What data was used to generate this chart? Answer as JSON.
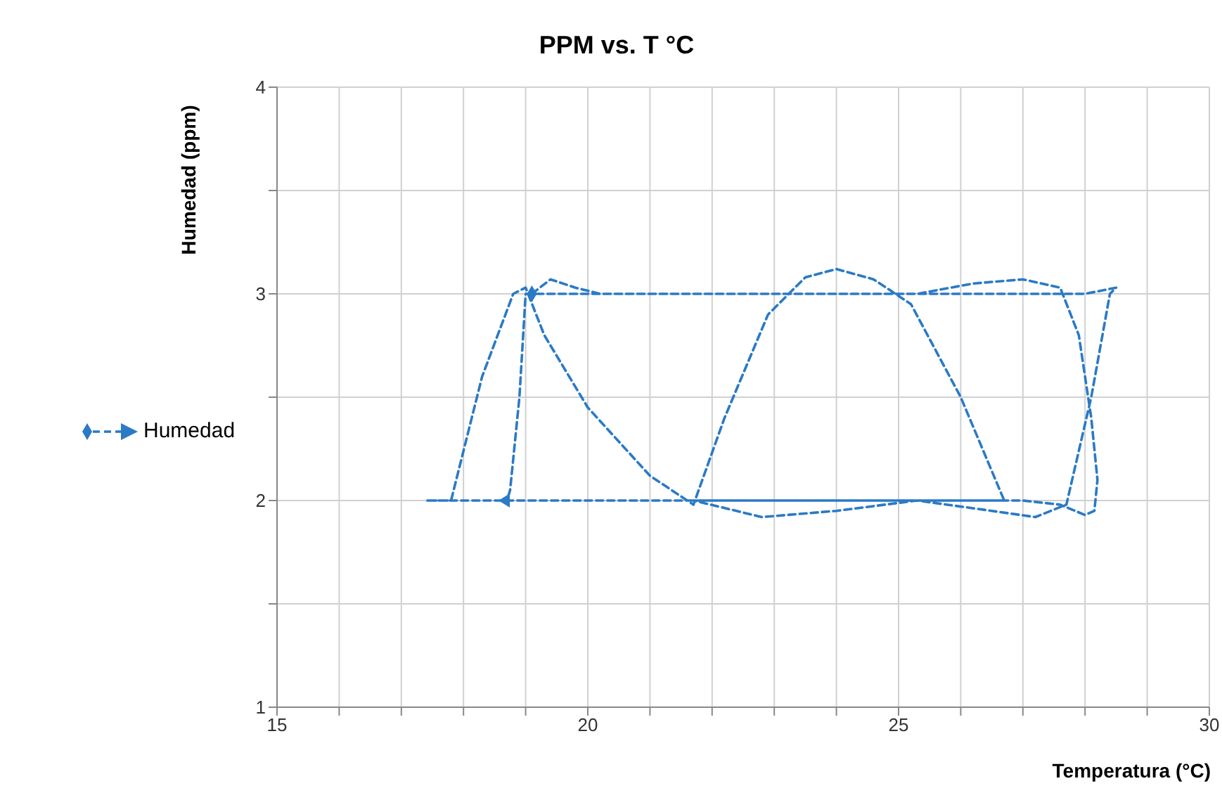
{
  "chart_data": {
    "type": "line",
    "title": "PPM vs. T °C",
    "xlabel": "Temperatura (°C)",
    "ylabel": "Humedad (ppm)",
    "x": [
      19.1,
      19.4,
      19.8,
      20.2,
      25.3,
      26.2,
      27.0,
      27.6,
      27.9,
      28.1,
      28.2,
      28.15,
      28.0,
      27.6,
      27.0,
      17.4,
      17.8,
      18.3,
      18.8,
      19.0,
      19.3,
      20.0,
      21.0,
      21.7,
      22.2,
      22.9,
      23.5,
      24.0,
      24.6,
      25.2,
      26.0,
      26.7,
      21.7,
      22.8,
      24.0,
      25.3,
      26.5,
      27.2,
      27.7,
      28.1,
      28.4,
      28.5,
      28.0,
      20.5,
      19.0,
      18.9,
      18.75,
      18.7
    ],
    "series": [
      {
        "name": "Humedad",
        "color": "#2a7ac6",
        "values": [
          3.0,
          3.07,
          3.03,
          3.0,
          3.0,
          3.05,
          3.07,
          3.03,
          2.8,
          2.4,
          2.1,
          1.95,
          1.93,
          1.98,
          2.0,
          2.0,
          2.0,
          2.6,
          3.0,
          3.03,
          2.8,
          2.45,
          2.12,
          1.98,
          2.4,
          2.9,
          3.08,
          3.12,
          3.07,
          2.95,
          2.5,
          2.0,
          2.0,
          1.92,
          1.95,
          2.0,
          1.95,
          1.92,
          1.98,
          2.5,
          3.0,
          3.03,
          3.0,
          3.0,
          3.0,
          2.5,
          2.05,
          2.0
        ]
      }
    ],
    "xlim": [
      15,
      30
    ],
    "xticks": [
      15,
      {
        "value": 16,
        "label": null
      },
      {
        "value": 17,
        "label": null
      },
      {
        "value": 18,
        "label": null
      },
      {
        "value": 19,
        "label": null
      },
      20,
      {
        "value": 21,
        "label": null
      },
      {
        "value": 22,
        "label": null
      },
      {
        "value": 23,
        "label": null
      },
      {
        "value": 24,
        "label": null
      },
      25,
      {
        "value": 26,
        "label": null
      },
      {
        "value": 27,
        "label": null
      },
      {
        "value": 28,
        "label": null
      },
      {
        "value": 29,
        "label": null
      },
      30
    ],
    "ylim": [
      1,
      4
    ],
    "yticks": [
      1,
      {
        "value": 1.5,
        "label": null
      },
      2,
      {
        "value": 2.5,
        "label": null
      },
      3,
      {
        "value": 3.5,
        "label": null
      },
      4
    ],
    "grid": true,
    "legend": "left",
    "line_style": "dashed"
  }
}
